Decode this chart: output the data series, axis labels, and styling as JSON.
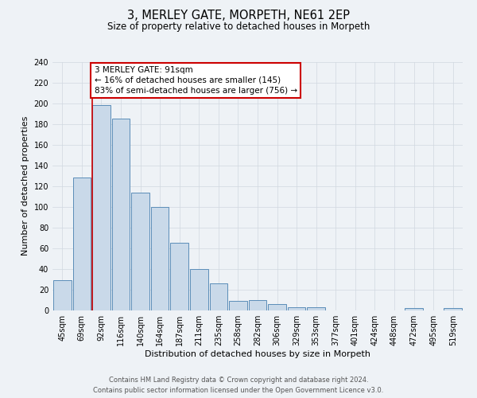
{
  "title": "3, MERLEY GATE, MORPETH, NE61 2EP",
  "subtitle": "Size of property relative to detached houses in Morpeth",
  "xlabel": "Distribution of detached houses by size in Morpeth",
  "ylabel": "Number of detached properties",
  "bar_labels": [
    "45sqm",
    "69sqm",
    "92sqm",
    "116sqm",
    "140sqm",
    "164sqm",
    "187sqm",
    "211sqm",
    "235sqm",
    "258sqm",
    "282sqm",
    "306sqm",
    "329sqm",
    "353sqm",
    "377sqm",
    "401sqm",
    "424sqm",
    "448sqm",
    "472sqm",
    "495sqm",
    "519sqm"
  ],
  "bar_values": [
    29,
    128,
    198,
    185,
    114,
    100,
    65,
    40,
    26,
    9,
    10,
    6,
    3,
    3,
    0,
    0,
    0,
    0,
    2,
    0,
    2
  ],
  "bar_color": "#c9d9e9",
  "bar_edge_color": "#5b8db8",
  "grid_color": "#d0d8e0",
  "vline_x_index": 2,
  "vline_color": "#cc0000",
  "annotation_text": "3 MERLEY GATE: 91sqm\n← 16% of detached houses are smaller (145)\n83% of semi-detached houses are larger (756) →",
  "annotation_box_color": "#cc0000",
  "ylim": [
    0,
    240
  ],
  "yticks": [
    0,
    20,
    40,
    60,
    80,
    100,
    120,
    140,
    160,
    180,
    200,
    220,
    240
  ],
  "footer_line1": "Contains HM Land Registry data © Crown copyright and database right 2024.",
  "footer_line2": "Contains public sector information licensed under the Open Government Licence v3.0.",
  "bg_color": "#eef2f6",
  "plot_bg_color": "#eef2f6",
  "title_fontsize": 10.5,
  "subtitle_fontsize": 8.5,
  "ylabel_fontsize": 8,
  "xlabel_fontsize": 8,
  "tick_fontsize": 7,
  "annotation_fontsize": 7.5,
  "footer_fontsize": 6
}
